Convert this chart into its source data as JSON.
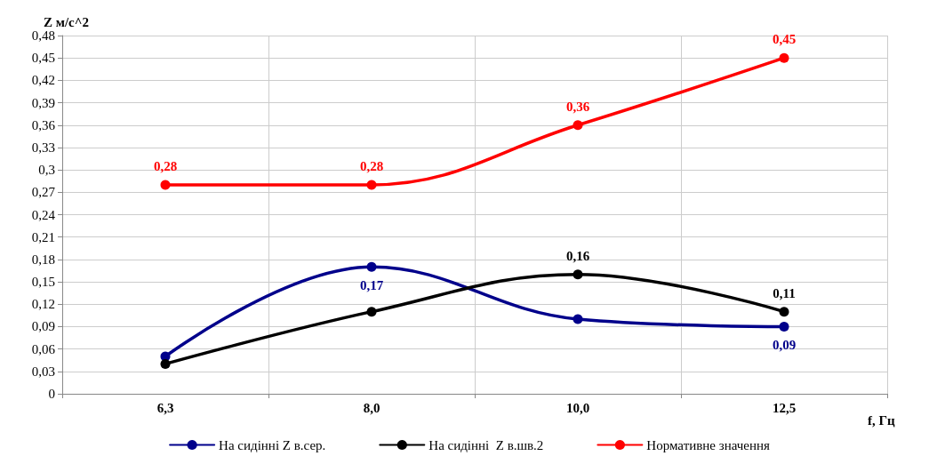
{
  "chart_data": {
    "type": "line",
    "ylabel": "Z м/с^2",
    "xlabel": "f, Гц",
    "categories": [
      "6,3",
      "8,0",
      "10,0",
      "12,5"
    ],
    "series": [
      {
        "name": "На сидінні Z в.сер.",
        "color": "#00008b",
        "values": [
          0.05,
          0.17,
          0.1,
          0.09
        ],
        "value_labels": [
          null,
          "0,17",
          null,
          "0,09"
        ]
      },
      {
        "name": "На сидінні  Z в.шв.2",
        "color": "#000000",
        "values": [
          0.04,
          0.11,
          0.16,
          0.11
        ],
        "value_labels": [
          null,
          null,
          "0,16",
          "0,11"
        ]
      },
      {
        "name": "Нормативне значення",
        "color": "#ff0000",
        "values": [
          0.28,
          0.28,
          0.36,
          0.45
        ],
        "value_labels": [
          "0,28",
          "0,28",
          "0,36",
          "0,45"
        ]
      }
    ],
    "ylim": [
      0,
      0.48
    ],
    "yticks": [
      0,
      {
        "value": 0.03,
        "label": "0,03"
      },
      {
        "value": 0.06,
        "label": "0,06"
      },
      {
        "value": 0.09,
        "label": "0,09"
      },
      {
        "value": 0.12,
        "label": "0,12"
      },
      {
        "value": 0.15,
        "label": "0,15"
      },
      {
        "value": 0.18,
        "label": "0,18"
      },
      {
        "value": 0.21,
        "label": "0,21"
      },
      {
        "value": 0.24,
        "label": "0,24"
      },
      {
        "value": 0.27,
        "label": "0,27"
      },
      {
        "value": 0.3,
        "label": "0,3"
      },
      {
        "value": 0.33,
        "label": "0,33"
      },
      {
        "value": 0.36,
        "label": "0,36"
      },
      {
        "value": 0.39,
        "label": "0,39"
      },
      {
        "value": 0.42,
        "label": "0,42"
      },
      {
        "value": 0.45,
        "label": "0,45"
      },
      {
        "value": 0.48,
        "label": "0,48"
      }
    ],
    "grid": true,
    "legend": "bottom",
    "marker": "circle",
    "line_style": "solid"
  }
}
